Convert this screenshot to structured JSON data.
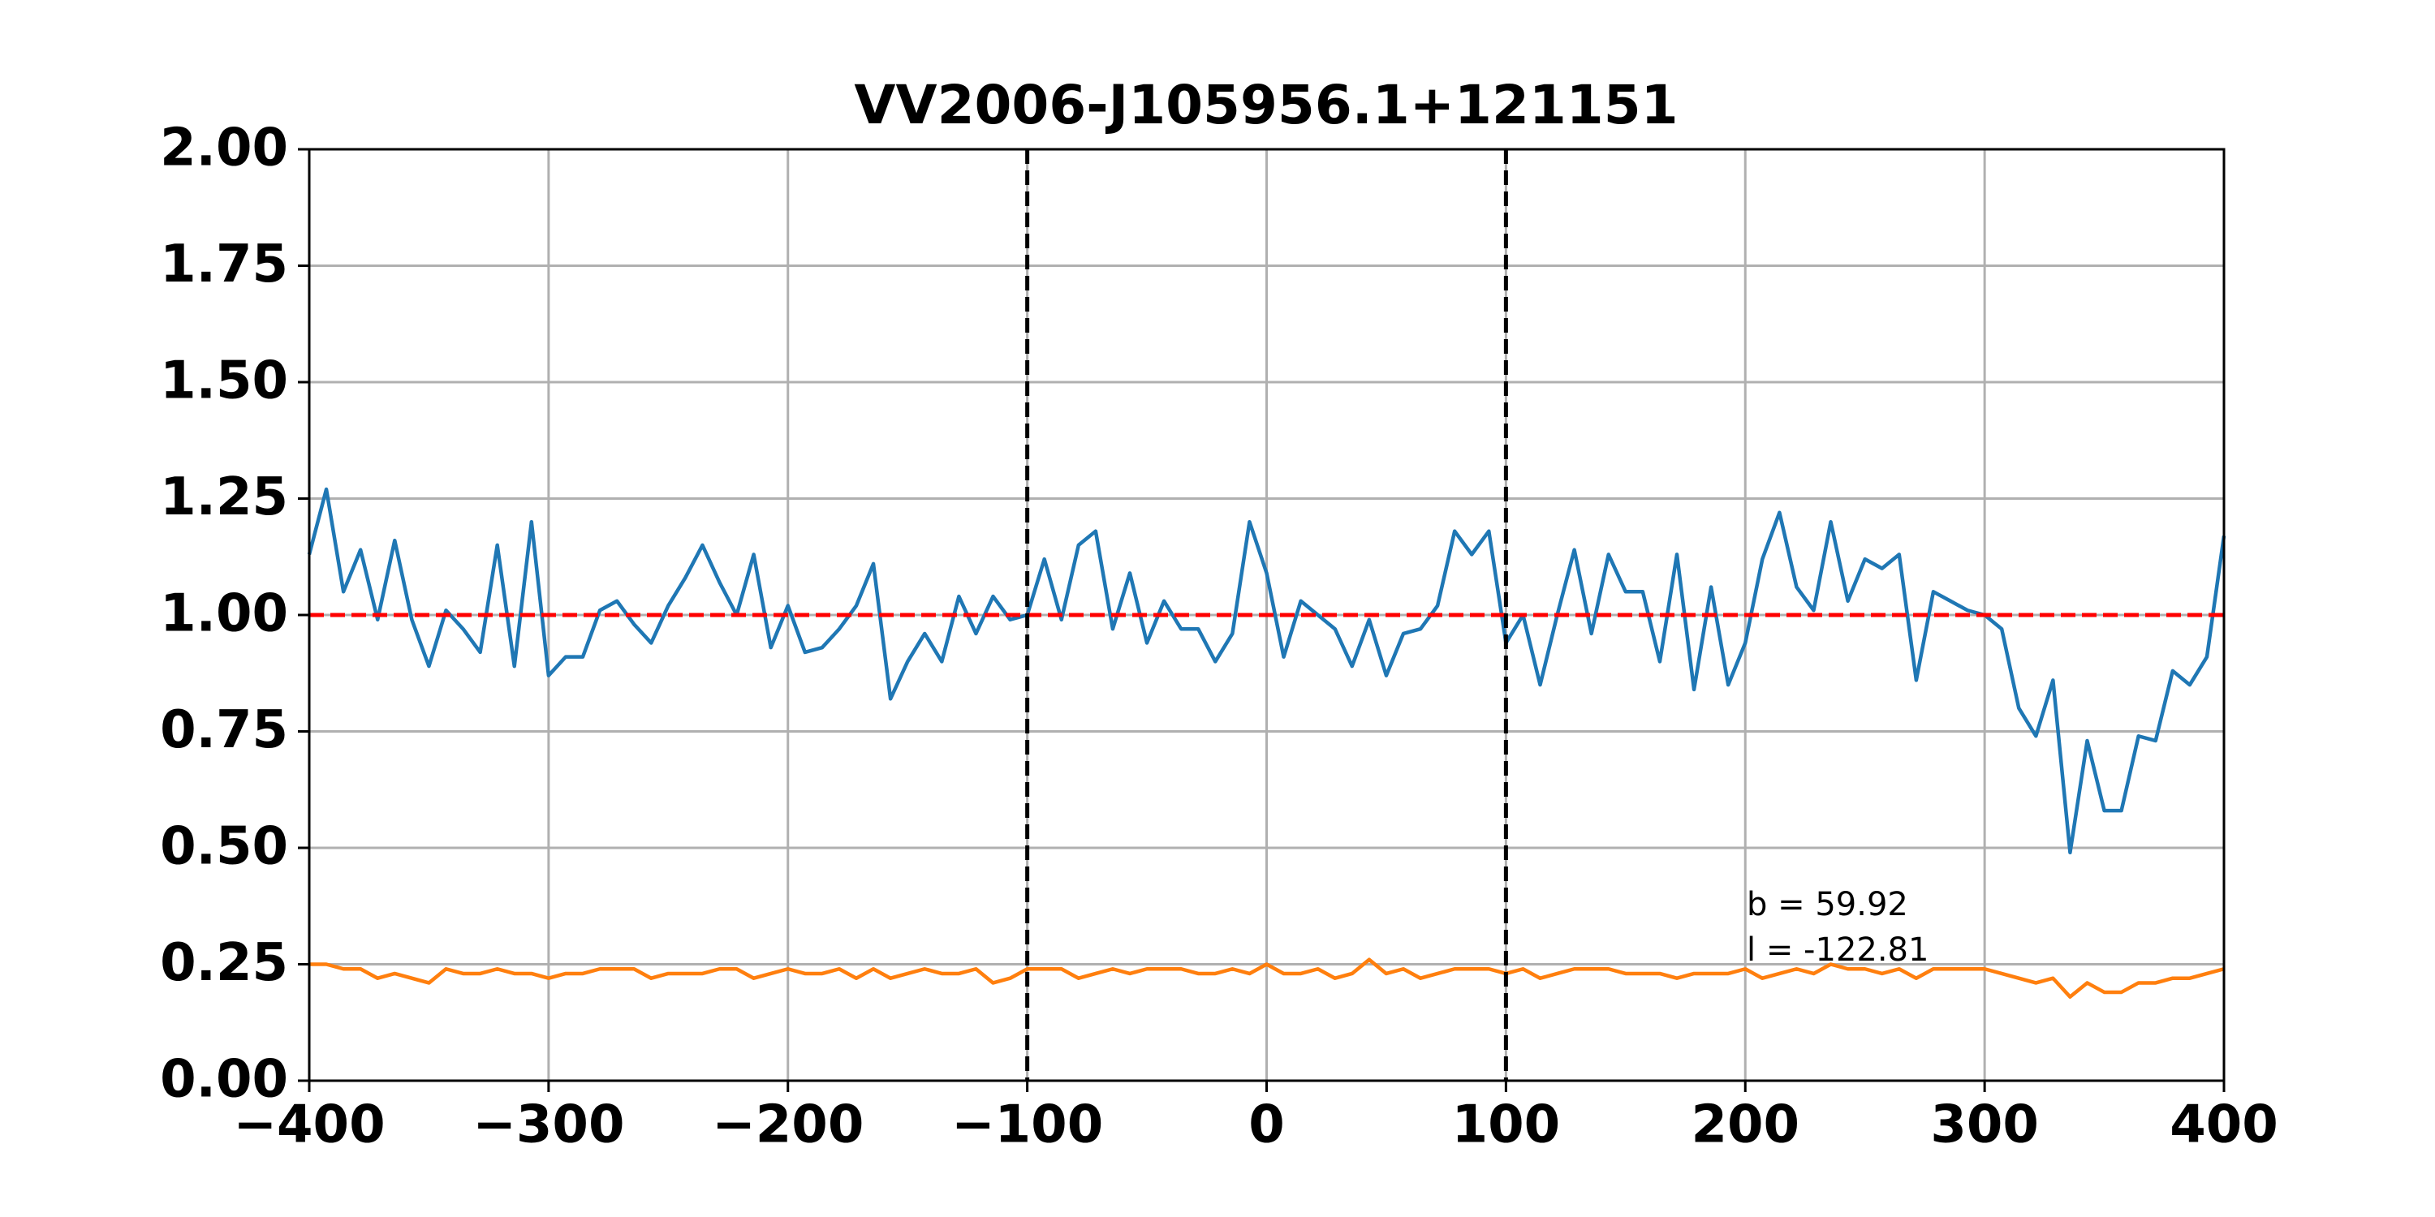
{
  "chart_data": {
    "type": "line",
    "title": "VV2006-J105956.1+121151",
    "x": [
      -400,
      -392.86,
      -385.71,
      -378.57,
      -371.43,
      -364.29,
      -357.14,
      -350,
      -342.86,
      -335.71,
      -328.57,
      -321.43,
      -314.29,
      -307.14,
      -300,
      -292.86,
      -285.71,
      -278.57,
      -271.43,
      -264.29,
      -257.14,
      -250,
      -242.86,
      -235.71,
      -228.57,
      -221.43,
      -214.29,
      -207.14,
      -200,
      -192.86,
      -185.71,
      -178.57,
      -171.43,
      -164.29,
      -157.14,
      -150,
      -142.86,
      -135.71,
      -128.57,
      -121.43,
      -114.29,
      -107.14,
      -100,
      -92.86,
      -85.71,
      -78.57,
      -71.43,
      -64.29,
      -57.14,
      -50,
      -42.86,
      -35.71,
      -28.57,
      -21.43,
      -14.29,
      -7.14,
      0,
      7.14,
      14.29,
      21.43,
      28.57,
      35.71,
      42.86,
      50,
      57.14,
      64.29,
      71.43,
      78.57,
      85.71,
      92.86,
      100,
      107.14,
      114.29,
      121.43,
      128.57,
      135.71,
      142.86,
      150,
      157.14,
      164.29,
      171.43,
      178.57,
      185.71,
      192.86,
      200,
      207.14,
      214.29,
      221.43,
      228.57,
      235.71,
      242.86,
      250,
      257.14,
      264.29,
      271.43,
      278.57,
      285.71,
      292.86,
      300,
      307.14,
      314.29,
      321.43,
      328.57,
      335.71,
      342.86,
      350,
      357.14,
      364.29,
      371.43,
      378.57,
      385.71,
      392.86,
      400
    ],
    "series": [
      {
        "color": "#1f77b4",
        "values": [
          1.13,
          1.27,
          1.05,
          1.14,
          0.99,
          1.16,
          0.99,
          0.89,
          1.01,
          0.97,
          0.92,
          1.15,
          0.89,
          1.2,
          0.87,
          0.91,
          0.91,
          1.01,
          1.03,
          0.98,
          0.94,
          1.02,
          1.08,
          1.15,
          1.07,
          1.0,
          1.13,
          0.93,
          1.02,
          0.92,
          0.93,
          0.97,
          1.02,
          1.11,
          0.82,
          0.9,
          0.96,
          0.9,
          1.04,
          0.96,
          1.04,
          0.99,
          1.0,
          1.12,
          0.99,
          1.15,
          1.18,
          0.97,
          1.09,
          0.94,
          1.03,
          0.97,
          0.97,
          0.9,
          0.96,
          1.2,
          1.09,
          0.91,
          1.03,
          1.0,
          0.97,
          0.89,
          0.99,
          0.87,
          0.96,
          0.97,
          1.02,
          1.18,
          1.13,
          1.18,
          0.94,
          1.0,
          0.85,
          1.0,
          1.14,
          0.96,
          1.13,
          1.05,
          1.05,
          0.9,
          1.13,
          0.84,
          1.06,
          0.85,
          0.94,
          1.12,
          1.22,
          1.06,
          1.01,
          1.2,
          1.03,
          1.12,
          1.1,
          1.13,
          0.86,
          1.05,
          1.03,
          1.01,
          1.0,
          0.97,
          0.8,
          0.74,
          0.86,
          0.49,
          0.73,
          0.58,
          0.58,
          0.74,
          0.73,
          0.88,
          0.85,
          0.91,
          1.17
        ]
      },
      {
        "color": "#ff7f0e",
        "values": [
          0.25,
          0.25,
          0.24,
          0.24,
          0.22,
          0.23,
          0.22,
          0.21,
          0.24,
          0.23,
          0.23,
          0.24,
          0.23,
          0.23,
          0.22,
          0.23,
          0.23,
          0.24,
          0.24,
          0.24,
          0.22,
          0.23,
          0.23,
          0.23,
          0.24,
          0.24,
          0.22,
          0.23,
          0.24,
          0.23,
          0.23,
          0.24,
          0.22,
          0.24,
          0.22,
          0.23,
          0.24,
          0.23,
          0.23,
          0.24,
          0.21,
          0.22,
          0.24,
          0.24,
          0.24,
          0.22,
          0.23,
          0.24,
          0.23,
          0.24,
          0.24,
          0.24,
          0.23,
          0.23,
          0.24,
          0.23,
          0.25,
          0.23,
          0.23,
          0.24,
          0.22,
          0.23,
          0.26,
          0.23,
          0.24,
          0.22,
          0.23,
          0.24,
          0.24,
          0.24,
          0.23,
          0.24,
          0.22,
          0.23,
          0.24,
          0.24,
          0.24,
          0.23,
          0.23,
          0.23,
          0.22,
          0.23,
          0.23,
          0.23,
          0.24,
          0.22,
          0.23,
          0.24,
          0.23,
          0.25,
          0.24,
          0.24,
          0.23,
          0.24,
          0.22,
          0.24,
          0.24,
          0.24,
          0.24,
          0.23,
          0.22,
          0.21,
          0.22,
          0.18,
          0.21,
          0.19,
          0.19,
          0.21,
          0.21,
          0.22,
          0.22,
          0.23,
          0.24
        ]
      }
    ],
    "hline": {
      "y": 1,
      "color": "#ff0000"
    },
    "vlines": [
      -100,
      100
    ],
    "vline_color": "#000000",
    "annotations": [
      "b = 59.92",
      "l = -122.81"
    ],
    "xlim": [
      -400,
      400
    ],
    "ylim": [
      0,
      2
    ],
    "xticks": [
      {
        "value": -400,
        "label": "−400"
      },
      {
        "value": -300,
        "label": "−300"
      },
      {
        "value": -200,
        "label": "−200"
      },
      {
        "value": -100,
        "label": "−100"
      },
      0,
      100,
      200,
      300,
      400
    ],
    "yticks": [
      {
        "value": 0,
        "label": "0.00"
      },
      {
        "value": 0.25,
        "label": "0.25"
      },
      {
        "value": 0.5,
        "label": "0.50"
      },
      {
        "value": 0.75,
        "label": "0.75"
      },
      {
        "value": 1,
        "label": "1.00"
      },
      {
        "value": 1.25,
        "label": "1.25"
      },
      {
        "value": 1.5,
        "label": "1.50"
      },
      {
        "value": 1.75,
        "label": "1.75"
      },
      {
        "value": 2,
        "label": "2.00"
      }
    ],
    "grid": true
  }
}
